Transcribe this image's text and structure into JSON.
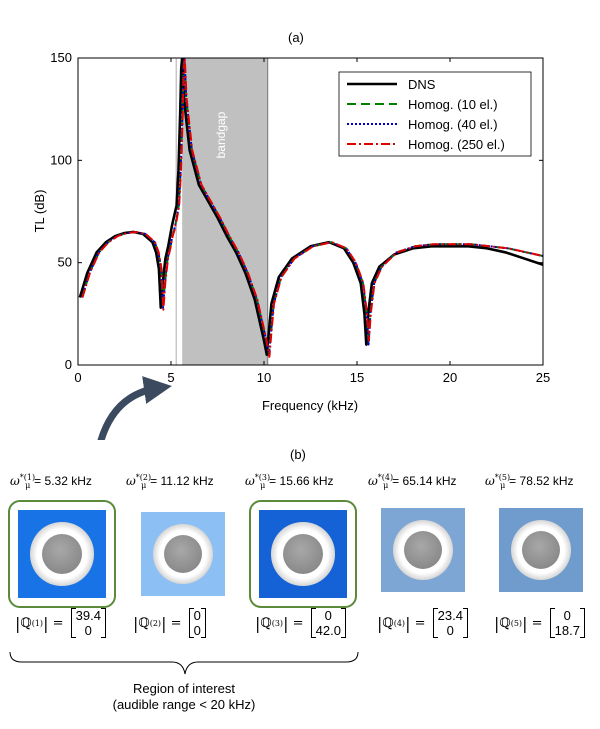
{
  "panel_a_label": "(a)",
  "panel_b_label": "(b)",
  "chart_data": {
    "type": "line",
    "title": "",
    "xlabel": "Frequency (kHz)",
    "ylabel": "TL (dB)",
    "xlim": [
      0,
      25
    ],
    "ylim": [
      0,
      150
    ],
    "xticks": [
      0,
      5,
      10,
      15,
      20,
      25
    ],
    "yticks": [
      0,
      50,
      100,
      150
    ],
    "shaded_region": {
      "x": [
        5.6,
        10.2
      ],
      "label": "bandgap",
      "color": "#c0c0c0"
    },
    "legend_position": "top-right",
    "series": [
      {
        "name": "DNS",
        "color": "#000000",
        "style": "solid",
        "shift": 0,
        "x": [
          0.1,
          0.5,
          1,
          1.5,
          2,
          2.5,
          3,
          3.5,
          4,
          4.2,
          4.35,
          4.45,
          4.55,
          4.7,
          4.85,
          4.95,
          5.05,
          5.15,
          5.3,
          5.4,
          5.5,
          5.55,
          5.6,
          5.7,
          6,
          6.5,
          7,
          7.5,
          8,
          8.5,
          9,
          9.5,
          9.8,
          10,
          10.15,
          10.25,
          10.4,
          10.8,
          11.5,
          12.5,
          13.5,
          14.3,
          14.8,
          15.2,
          15.4,
          15.5,
          15.6,
          15.8,
          16.2,
          17,
          18,
          19,
          20,
          21,
          22,
          23,
          24,
          25
        ],
        "y": [
          33,
          45,
          55,
          60,
          63,
          64.5,
          65,
          64,
          60,
          55,
          47,
          28,
          40,
          52,
          58,
          63,
          68,
          72,
          78,
          95,
          125,
          145,
          150,
          130,
          105,
          88,
          80,
          72,
          63,
          55,
          45,
          32,
          20,
          12,
          5,
          15,
          30,
          43,
          52,
          58,
          60,
          57,
          50,
          40,
          25,
          10,
          25,
          40,
          48,
          54,
          57,
          58,
          58,
          58,
          57,
          55,
          52,
          49
        ]
      },
      {
        "name": "Homog. (10 el.)",
        "color": "#008000",
        "style": "dashed",
        "shift": 0.12,
        "x": [
          0.1,
          0.5,
          1,
          1.5,
          2,
          2.5,
          3,
          3.5,
          4,
          4.2,
          4.35,
          4.45,
          4.55,
          4.7,
          4.85,
          4.95,
          5.05,
          5.15,
          5.3,
          5.4,
          5.5,
          5.55,
          5.6,
          5.7,
          6,
          6.5,
          7,
          7.5,
          8,
          8.5,
          9,
          9.5,
          9.8,
          10,
          10.15,
          10.25,
          10.4,
          10.8,
          11.5,
          12.5,
          13.5,
          14.3,
          14.8,
          15.2,
          15.4,
          15.5,
          15.6,
          15.8,
          16.2,
          17,
          18,
          19,
          20,
          21,
          22,
          23,
          24,
          25
        ],
        "y": [
          33,
          45,
          55,
          60,
          63,
          64.5,
          65,
          64,
          60,
          55,
          47,
          28,
          40,
          52,
          58,
          63,
          66,
          70,
          78,
          95,
          125,
          145,
          150,
          130,
          105,
          88,
          80,
          72,
          63,
          55,
          45,
          32,
          20,
          12,
          5,
          15,
          30,
          43,
          52,
          58,
          60,
          57,
          50,
          40,
          25,
          10,
          25,
          40,
          48,
          55,
          58,
          59,
          59,
          59,
          58,
          57,
          55,
          53
        ]
      },
      {
        "name": "Homog. (40 el.)",
        "color": "#0000cc",
        "style": "dotted",
        "shift": 0.12,
        "x": [
          0.1,
          0.5,
          1,
          1.5,
          2,
          2.5,
          3,
          3.5,
          4,
          4.2,
          4.35,
          4.45,
          4.55,
          4.7,
          4.85,
          4.95,
          5.05,
          5.15,
          5.3,
          5.4,
          5.5,
          5.55,
          5.6,
          5.7,
          6,
          6.5,
          7,
          7.5,
          8,
          8.5,
          9,
          9.5,
          9.8,
          10,
          10.15,
          10.25,
          10.4,
          10.8,
          11.5,
          12.5,
          13.5,
          14.3,
          14.8,
          15.2,
          15.4,
          15.5,
          15.6,
          15.8,
          16.2,
          17,
          18,
          19,
          20,
          21,
          22,
          23,
          24,
          25
        ],
        "y": [
          33,
          45,
          55,
          60,
          63,
          64.5,
          65,
          64,
          60,
          55,
          47,
          28,
          40,
          52,
          58,
          63,
          66,
          70,
          78,
          95,
          125,
          145,
          150,
          130,
          105,
          88,
          80,
          72,
          63,
          55,
          45,
          32,
          20,
          12,
          5,
          15,
          30,
          43,
          52,
          58,
          60,
          57,
          50,
          40,
          25,
          10,
          25,
          40,
          48,
          55,
          58,
          59,
          59,
          59,
          58,
          57,
          55,
          53
        ]
      },
      {
        "name": "Homog. (250 el.)",
        "color": "#e00000",
        "style": "dashdot",
        "shift": 0.14,
        "x": [
          0.1,
          0.5,
          1,
          1.5,
          2,
          2.5,
          3,
          3.5,
          4,
          4.2,
          4.35,
          4.45,
          4.55,
          4.7,
          4.85,
          4.95,
          5.05,
          5.15,
          5.3,
          5.4,
          5.5,
          5.55,
          5.6,
          5.7,
          6,
          6.5,
          7,
          7.5,
          8,
          8.5,
          9,
          9.5,
          9.8,
          10,
          10.15,
          10.25,
          10.4,
          10.8,
          11.5,
          12.5,
          13.5,
          14.3,
          14.8,
          15.2,
          15.4,
          15.5,
          15.6,
          15.8,
          16.2,
          17,
          18,
          19,
          20,
          21,
          22,
          23,
          24,
          25
        ],
        "y": [
          33,
          45,
          55,
          60,
          63,
          64.5,
          65,
          64,
          60,
          55,
          47,
          27,
          40,
          52,
          58,
          63,
          66,
          70,
          78,
          95,
          125,
          145,
          150,
          130,
          105,
          88,
          80,
          72,
          63,
          55,
          45,
          32,
          20,
          12,
          4,
          15,
          30,
          43,
          52,
          58,
          60,
          57,
          50,
          40,
          25,
          12,
          25,
          40,
          48,
          55,
          58,
          59,
          59,
          59,
          58,
          57,
          55,
          53
        ]
      }
    ]
  },
  "modes": [
    {
      "omega_sup": "*(1)",
      "omega_value": "= 5.32 kHz",
      "q_sup": "(1)",
      "q_top": "39.4",
      "q_bottom": "0",
      "highlighted": true,
      "tint": "#1874e6"
    },
    {
      "omega_sup": "*(2)",
      "omega_value": "= 11.12 kHz",
      "q_sup": "(2)",
      "q_top": "0",
      "q_bottom": "0",
      "highlighted": false,
      "tint": "#8cc0f4"
    },
    {
      "omega_sup": "*(3)",
      "omega_value": "= 15.66 kHz",
      "q_sup": "(3)",
      "q_top": "0",
      "q_bottom": "42.0",
      "highlighted": true,
      "tint": "#1462d6"
    },
    {
      "omega_sup": "*(4)",
      "omega_value": "= 65.14 kHz",
      "q_sup": "(4)",
      "q_top": "23.4",
      "q_bottom": "0",
      "highlighted": false,
      "tint": "#7ea6d4"
    },
    {
      "omega_sup": "*(5)",
      "omega_value": "= 78.52 kHz",
      "q_sup": "(5)",
      "q_top": "0",
      "q_bottom": "18.7",
      "highlighted": false,
      "tint": "#6f9ccc"
    }
  ],
  "omega_symbol": "ω",
  "omega_sub": "μ",
  "q_symbol": "ℚ",
  "highlight_color": "#5a8a3a",
  "arrow_color": "#3b4a5e",
  "region_text_line1": "Region of interest",
  "region_text_line2": "(audible range < 20 kHz)"
}
